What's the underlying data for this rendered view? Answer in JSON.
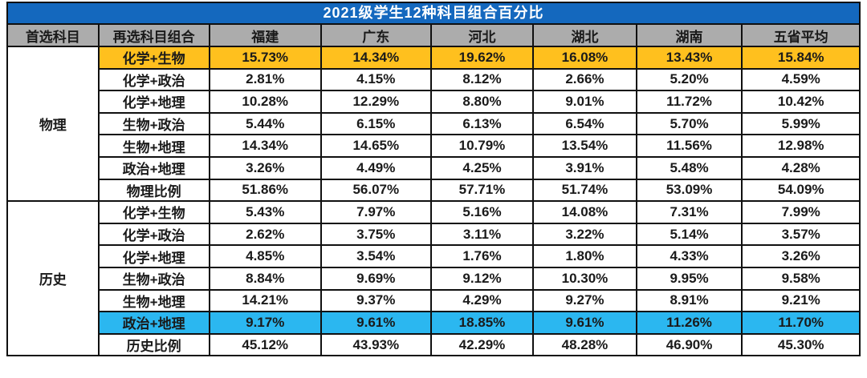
{
  "title": "2021级学生12种科目组合百分比",
  "colors": {
    "title_bg": "#1468BE",
    "title_text": "#FFFFFF",
    "header_bg": "#ACACAC",
    "highlight_orange": "#FFC01E",
    "highlight_cyan": "#2BB7F0",
    "border": "#101010",
    "body_text": "#1A1A1A"
  },
  "chart_data": {
    "type": "table",
    "title": "2021级学生12种科目组合百分比",
    "columns": [
      "首选科目",
      "再选科目组合",
      "福建",
      "广东",
      "河北",
      "湖北",
      "湖南",
      "五省平均"
    ],
    "sections": [
      {
        "primary_subject": "物理",
        "rows": [
          {
            "label": "化学+生物",
            "values": [
              "15.73%",
              "14.34%",
              "19.62%",
              "16.08%",
              "13.43%",
              "15.84%"
            ],
            "highlight": "orange"
          },
          {
            "label": "化学+政治",
            "values": [
              "2.81%",
              "4.15%",
              "8.12%",
              "2.66%",
              "5.20%",
              "4.59%"
            ],
            "highlight": null
          },
          {
            "label": "化学+地理",
            "values": [
              "10.28%",
              "12.29%",
              "8.80%",
              "9.01%",
              "11.72%",
              "10.42%"
            ],
            "highlight": null
          },
          {
            "label": "生物+政治",
            "values": [
              "5.44%",
              "6.15%",
              "6.13%",
              "6.54%",
              "5.70%",
              "5.99%"
            ],
            "highlight": null
          },
          {
            "label": "生物+地理",
            "values": [
              "14.34%",
              "14.65%",
              "10.79%",
              "13.54%",
              "11.56%",
              "12.98%"
            ],
            "highlight": null
          },
          {
            "label": "政治+地理",
            "values": [
              "3.26%",
              "4.49%",
              "4.25%",
              "3.91%",
              "5.48%",
              "4.28%"
            ],
            "highlight": null
          },
          {
            "label": "物理比例",
            "values": [
              "51.86%",
              "56.07%",
              "57.71%",
              "51.74%",
              "53.09%",
              "54.09%"
            ],
            "highlight": null
          }
        ]
      },
      {
        "primary_subject": "历史",
        "rows": [
          {
            "label": "化学+生物",
            "values": [
              "5.43%",
              "7.97%",
              "5.16%",
              "14.08%",
              "7.31%",
              "7.99%"
            ],
            "highlight": null
          },
          {
            "label": "化学+政治",
            "values": [
              "2.62%",
              "3.75%",
              "3.11%",
              "3.22%",
              "5.14%",
              "3.57%"
            ],
            "highlight": null
          },
          {
            "label": "化学+地理",
            "values": [
              "4.85%",
              "3.54%",
              "1.76%",
              "1.80%",
              "4.33%",
              "3.26%"
            ],
            "highlight": null
          },
          {
            "label": "生物+政治",
            "values": [
              "8.84%",
              "9.69%",
              "9.12%",
              "10.30%",
              "9.95%",
              "9.58%"
            ],
            "highlight": null
          },
          {
            "label": "生物+地理",
            "values": [
              "14.21%",
              "9.37%",
              "4.29%",
              "9.27%",
              "8.91%",
              "9.21%"
            ],
            "highlight": null
          },
          {
            "label": "政治+地理",
            "values": [
              "9.17%",
              "9.61%",
              "18.85%",
              "9.61%",
              "11.26%",
              "11.70%"
            ],
            "highlight": "cyan"
          },
          {
            "label": "历史比例",
            "values": [
              "45.12%",
              "43.93%",
              "42.29%",
              "48.28%",
              "46.90%",
              "45.30%"
            ],
            "highlight": null
          }
        ]
      }
    ]
  }
}
